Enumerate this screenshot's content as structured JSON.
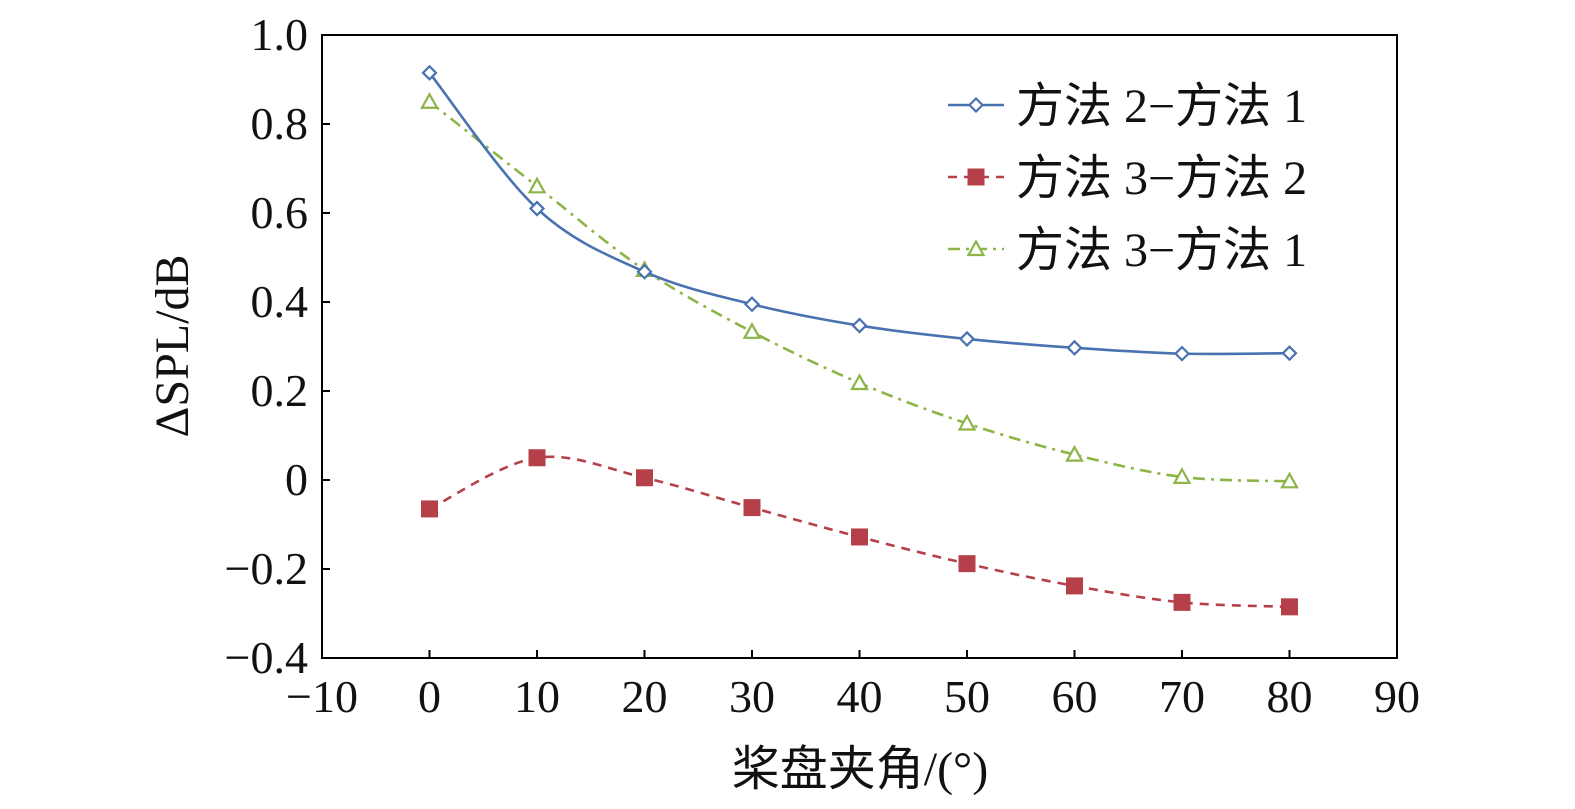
{
  "chart_data": {
    "type": "line",
    "title": "",
    "xlabel": "桨盘夹角/(°)",
    "ylabel": "ΔSPL/dB",
    "xlim": [
      -10,
      90
    ],
    "ylim": [
      -0.4,
      1.0
    ],
    "xticks": [
      -10,
      0,
      10,
      20,
      30,
      40,
      50,
      60,
      70,
      80,
      90
    ],
    "xtick_labels": [
      "−10",
      "0",
      "10",
      "20",
      "30",
      "40",
      "50",
      "60",
      "70",
      "80",
      "90"
    ],
    "yticks": [
      -0.4,
      -0.2,
      0,
      0.2,
      0.4,
      0.6,
      0.8,
      1.0
    ],
    "ytick_labels": [
      "−0.4",
      "−0.2",
      "0",
      "0.2",
      "0.4",
      "0.6",
      "0.8",
      "1.0"
    ],
    "grid": false,
    "legend_position": "top-right",
    "x": [
      0,
      10,
      20,
      30,
      40,
      50,
      60,
      70,
      80
    ],
    "series": [
      {
        "name": "方法 2−方法 1",
        "values": [
          0.915,
          0.61,
          0.468,
          0.395,
          0.347,
          0.317,
          0.297,
          0.284,
          0.285
        ],
        "color": "#4a72b0",
        "marker": "diamond",
        "line": "solid"
      },
      {
        "name": "方法 3−方法 2",
        "values": [
          -0.065,
          0.05,
          0.005,
          -0.062,
          -0.128,
          -0.188,
          -0.238,
          -0.275,
          -0.285
        ],
        "color": "#b5404a",
        "marker": "square",
        "line": "dashed"
      },
      {
        "name": "方法 3−方法 1",
        "values": [
          0.85,
          0.66,
          0.472,
          0.333,
          0.218,
          0.127,
          0.057,
          0.007,
          -0.003
        ],
        "color": "#8cb446",
        "marker": "triangle",
        "line": "dashdot"
      }
    ]
  }
}
